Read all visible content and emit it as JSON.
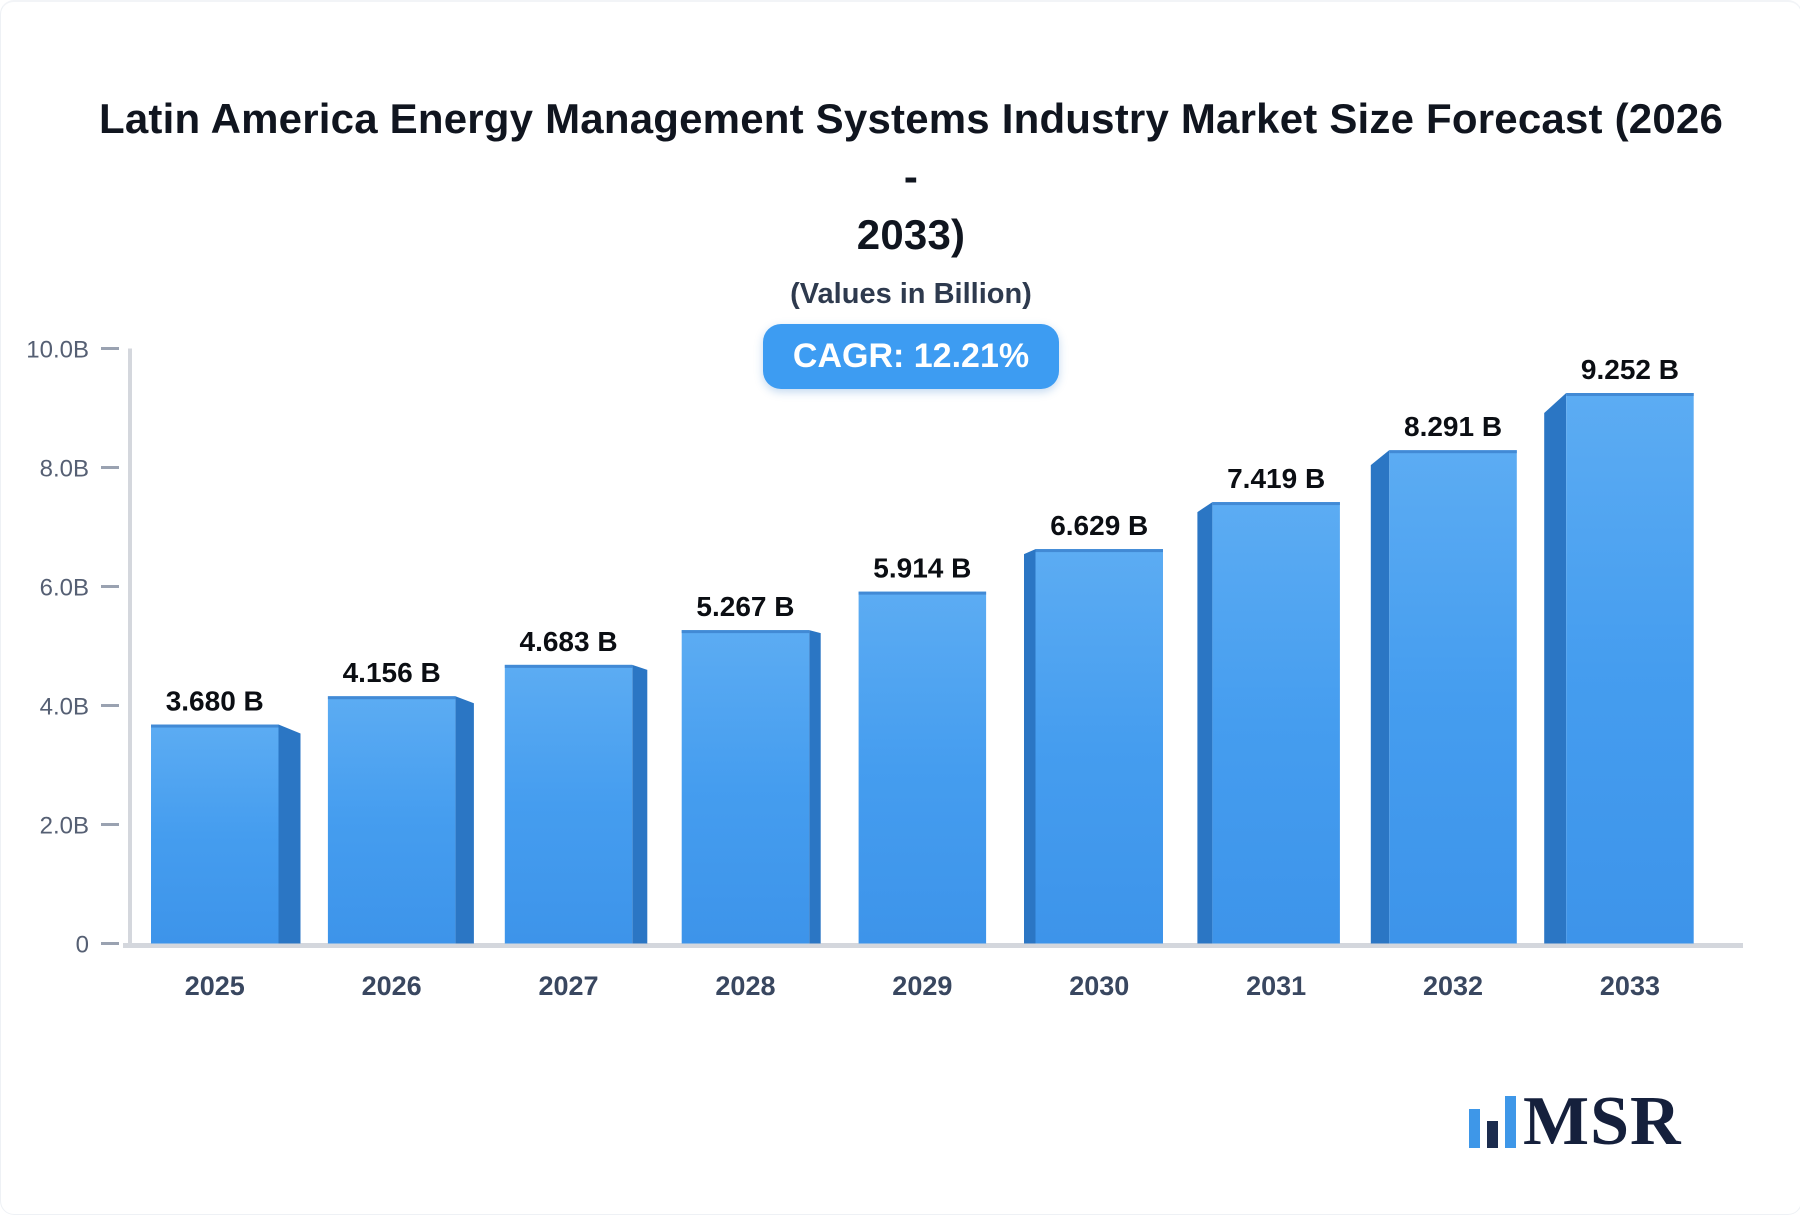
{
  "header": {
    "title_line1": "Latin America Energy Management Systems Industry Market Size Forecast (2026 -",
    "title_line2": "2033)",
    "subtitle": "(Values in Billion)",
    "cagr_label": "CAGR: 12.21%"
  },
  "chart_data": {
    "type": "bar",
    "title": "Latin America Energy Management Systems Industry Market Size Forecast (2026 - 2033)",
    "subtitle": "(Values in Billion)",
    "cagr_percent": "12.21%",
    "unit": "Billion",
    "categories": [
      "2025",
      "2026",
      "2027",
      "2028",
      "2029",
      "2030",
      "2031",
      "2032",
      "2033"
    ],
    "values": [
      3.68,
      4.156,
      4.683,
      5.267,
      5.914,
      6.629,
      7.419,
      8.291,
      9.252
    ],
    "value_labels": [
      "3.680 B",
      "4.156 B",
      "4.683 B",
      "5.267 B",
      "5.914 B",
      "6.629 B",
      "7.419 B",
      "8.291 B",
      "9.252 B"
    ],
    "ylim": [
      0,
      10
    ],
    "y_ticks": [
      {
        "value": 0,
        "label": "0"
      },
      {
        "value": 2,
        "label": "2.0B"
      },
      {
        "value": 4,
        "label": "4.0B"
      },
      {
        "value": 6,
        "label": "6.0B"
      },
      {
        "value": 8,
        "label": "8.0B"
      },
      {
        "value": 10,
        "label": "10.0B"
      }
    ],
    "grid": false,
    "legend_position": "none",
    "colors": {
      "bar_face_top": "#5cacf3",
      "bar_face_bottom": "#3d94ea",
      "bar_top_edge": "#3f86d2",
      "bar_side": "#2b76c4",
      "axis_line": "#d4d7dd",
      "tick_dash": "#9aa2b1",
      "y_tick_label": "#555f73",
      "x_tick_label": "#394760",
      "value_label": "#0b0e13",
      "badge_background": "#3d9cf2",
      "badge_text": "#ffffff"
    }
  },
  "logo": {
    "text": "MSR",
    "icon": "bar-chart-icon",
    "bar_blue": "#3e97e8",
    "bar_navy": "#1c2c4e",
    "text_color": "#15203c"
  }
}
